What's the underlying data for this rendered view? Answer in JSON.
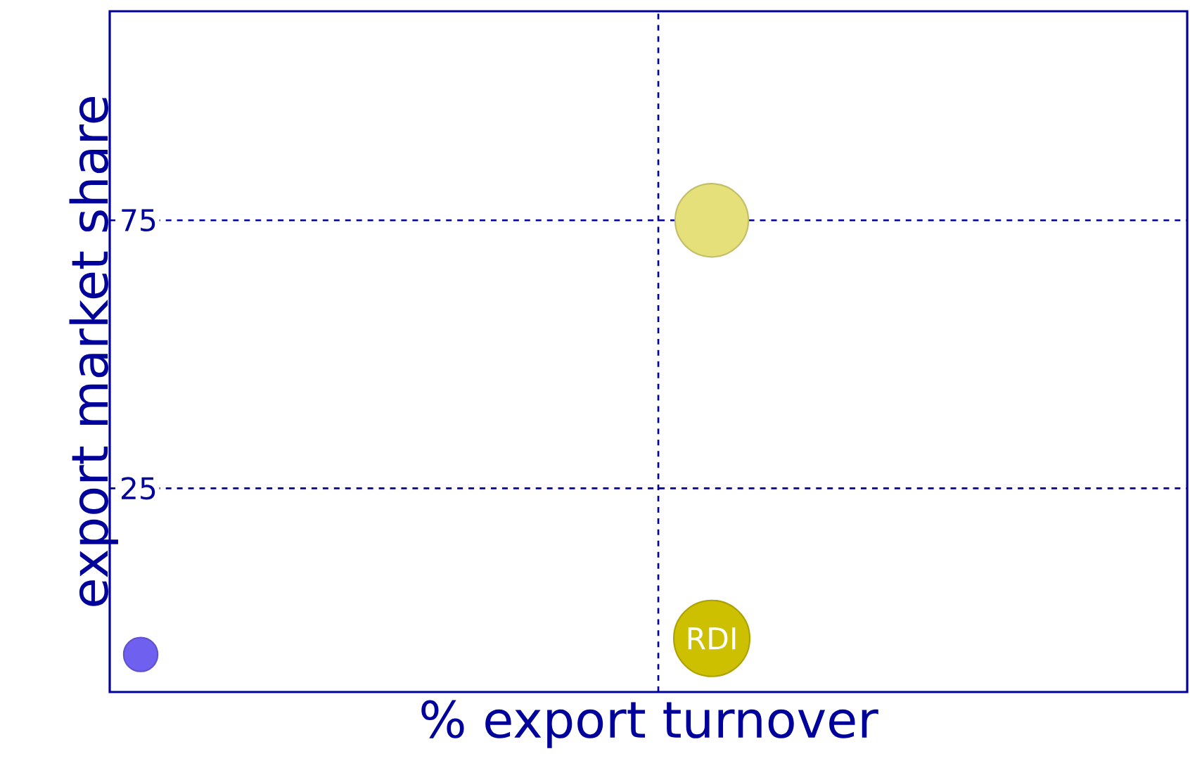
{
  "chart_data": {
    "type": "bubble",
    "xlabel": "% export turnover",
    "ylabel": "export market share",
    "categories": [
      null,
      null
    ],
    "ylim": [
      -13,
      114
    ],
    "yticks": [
      25,
      75
    ],
    "tick_labels": "y",
    "grid": "y",
    "marker": "circle",
    "series": [
      {
        "color": "#7060f0",
        "values": [
          -6,
          null
        ],
        "sizes": [
          0.2,
          null
        ]
      },
      {
        "color": "#e6e07a",
        "values": [
          null,
          75
        ],
        "sizes": [
          null,
          0.93
        ]
      },
      {
        "name": "RDI",
        "color": "#ccc000",
        "values": [
          null,
          -3
        ],
        "sizes": [
          null,
          1
        ]
      }
    ]
  }
}
